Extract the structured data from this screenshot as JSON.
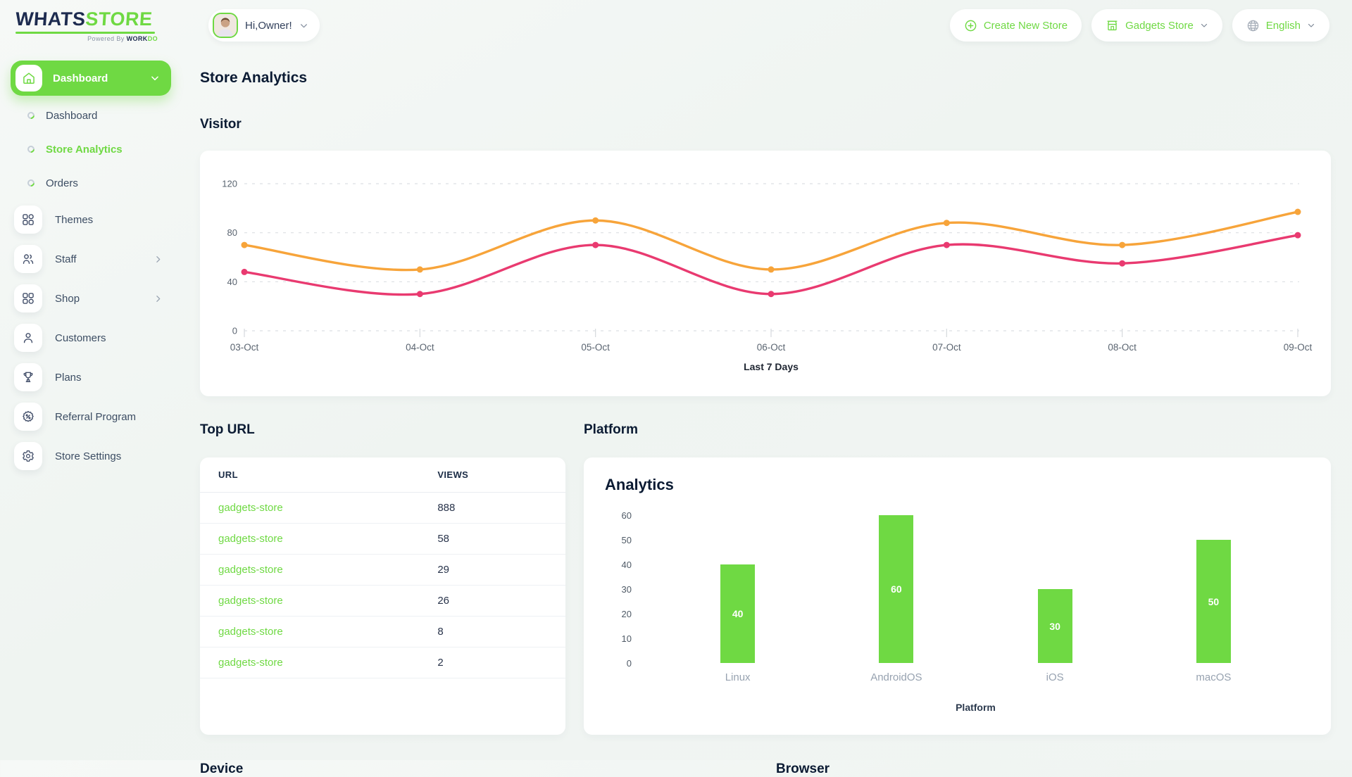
{
  "brand": {
    "logo_part1": "WHATS",
    "logo_part2": "STORE",
    "tagline_prefix": "Powered By ",
    "tagline_work": "WORK",
    "tagline_do": "DO"
  },
  "header": {
    "greeting": "Hi,Owner!",
    "create_new_store": "Create New Store",
    "current_store": "Gadgets Store",
    "language": "English"
  },
  "sidebar": {
    "group_label": "Dashboard",
    "sub_items": [
      {
        "label": "Dashboard"
      },
      {
        "label": "Store Analytics"
      },
      {
        "label": "Orders"
      }
    ],
    "items": [
      {
        "label": "Themes"
      },
      {
        "label": "Staff"
      },
      {
        "label": "Shop"
      },
      {
        "label": "Customers"
      },
      {
        "label": "Plans"
      },
      {
        "label": "Referral Program"
      },
      {
        "label": "Store Settings"
      }
    ]
  },
  "page": {
    "title": "Store Analytics"
  },
  "sections": {
    "visitor": "Visitor",
    "top_url": "Top URL",
    "platform": "Platform",
    "device": "Device",
    "browser": "Browser"
  },
  "platform_card": {
    "title": "Analytics"
  },
  "top_url_table": {
    "headers": [
      "URL",
      "VIEWS"
    ],
    "rows": [
      [
        "gadgets-store",
        "888"
      ],
      [
        "gadgets-store",
        "58"
      ],
      [
        "gadgets-store",
        "29"
      ],
      [
        "gadgets-store",
        "26"
      ],
      [
        "gadgets-store",
        "8"
      ],
      [
        "gadgets-store",
        "2"
      ]
    ]
  },
  "chart_data": [
    {
      "type": "line",
      "title": "Visitor",
      "x": [
        "03-Oct",
        "04-Oct",
        "05-Oct",
        "06-Oct",
        "07-Oct",
        "08-Oct",
        "09-Oct"
      ],
      "series": [
        {
          "name": "visitors-orange",
          "color": "#f7a43a",
          "values": [
            70,
            50,
            90,
            50,
            88,
            70,
            97
          ]
        },
        {
          "name": "visitors-pink",
          "color": "#e93a70",
          "values": [
            48,
            30,
            70,
            30,
            70,
            55,
            78
          ]
        }
      ],
      "xlabel": "Last 7 Days",
      "ylim": [
        0,
        120
      ],
      "yticks": [
        0,
        40,
        80,
        120
      ],
      "grid": true,
      "legend": "none"
    },
    {
      "type": "bar",
      "title": "Analytics",
      "categories": [
        "Linux",
        "AndroidOS",
        "iOS",
        "macOS"
      ],
      "values": [
        40,
        60,
        30,
        50
      ],
      "xlabel": "Platform",
      "ylim": [
        0,
        60
      ],
      "yticks": [
        0,
        10,
        20,
        30,
        40,
        50,
        60
      ],
      "bar_color": "#6fd943",
      "value_labels": true
    }
  ],
  "colors": {
    "accent_green": "#6fd943",
    "line_orange": "#f7a43a",
    "line_pink": "#e93a70",
    "navy": "#1d2b4f"
  }
}
